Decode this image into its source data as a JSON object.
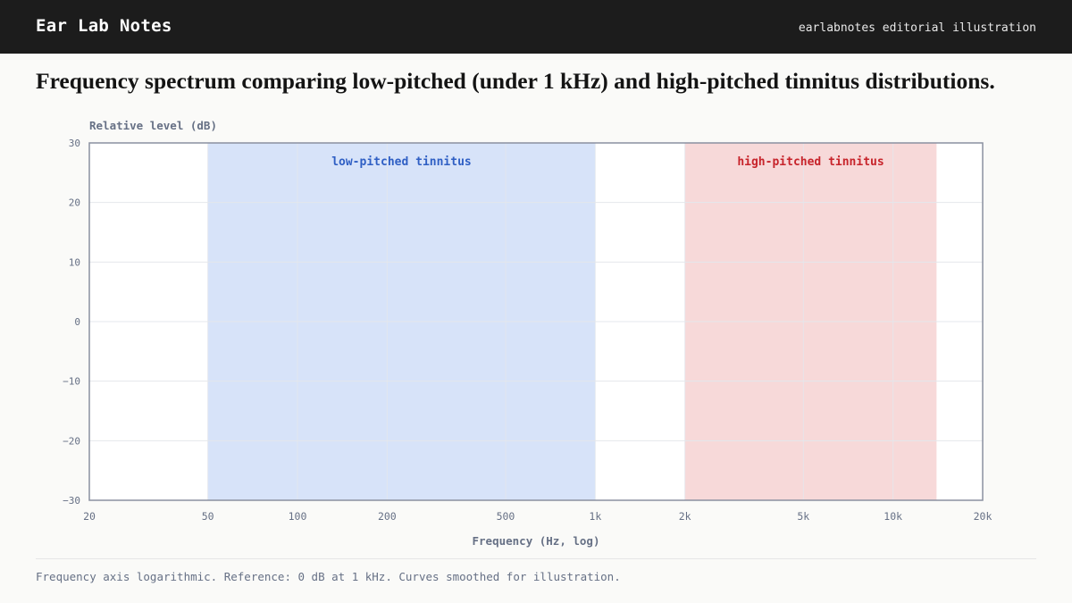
{
  "header": {
    "brand": "Ear Lab Notes",
    "tagline": "earlabnotes editorial illustration"
  },
  "title": "Frequency spectrum comparing low-pitched (under 1 kHz) and high-pitched tinnitus distributions.",
  "footnote": "Frequency axis logarithmic. Reference: 0 dB at 1 kHz. Curves smoothed for illustration.",
  "colors": {
    "low_band": "#d7e3f9",
    "low_label": "#2f5fc4",
    "high_band": "#f7d9d9",
    "high_label": "#c7242b",
    "axis": "#8a90a0",
    "grid": "#e4e7ec",
    "text": "#667085"
  },
  "chart_data": {
    "type": "area",
    "x_scale": "log",
    "xlim": [
      20,
      20000
    ],
    "ylim": [
      -30,
      30
    ],
    "xlabel": "Frequency (Hz, log)",
    "ylabel": "Relative level (dB)",
    "x_ticks": [
      20,
      50,
      100,
      200,
      500,
      1000,
      2000,
      5000,
      10000,
      20000
    ],
    "x_tick_labels": [
      "20",
      "50",
      "100",
      "200",
      "500",
      "1k",
      "2k",
      "5k",
      "10k",
      "20k"
    ],
    "y_ticks": [
      30,
      20,
      10,
      0,
      -10,
      -20,
      -30
    ],
    "y_tick_labels": [
      "30",
      "20",
      "10",
      "0",
      "−10",
      "−20",
      "−30"
    ],
    "grid": true,
    "bands": [
      {
        "name": "low-pitched tinnitus",
        "x_range": [
          50,
          1000
        ]
      },
      {
        "name": "high-pitched tinnitus",
        "x_range": [
          2000,
          14000
        ]
      }
    ]
  }
}
